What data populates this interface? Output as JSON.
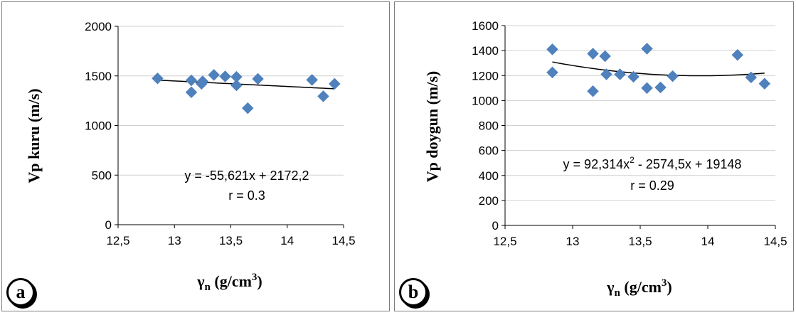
{
  "chart_data": [
    {
      "type": "scatter",
      "panel_label": "a",
      "ylabel": "Vp kuru (m/s)",
      "xlabel_symbol": "γ",
      "xlabel_sub": "n",
      "xlabel_unit": " (g/cm",
      "xlabel_sup": "3",
      "xlabel_close": ")",
      "xlim": [
        12.5,
        14.5
      ],
      "ylim": [
        0,
        2000
      ],
      "xticks": [
        "12,5",
        "13",
        "13,5",
        "14",
        "14,5"
      ],
      "yticks": [
        "0",
        "500",
        "1000",
        "1500",
        "2000"
      ],
      "points": [
        {
          "x": 12.85,
          "y": 1475
        },
        {
          "x": 13.15,
          "y": 1455
        },
        {
          "x": 13.15,
          "y": 1335
        },
        {
          "x": 13.25,
          "y": 1445
        },
        {
          "x": 13.24,
          "y": 1420
        },
        {
          "x": 13.35,
          "y": 1510
        },
        {
          "x": 13.45,
          "y": 1495
        },
        {
          "x": 13.55,
          "y": 1490
        },
        {
          "x": 13.55,
          "y": 1405
        },
        {
          "x": 13.65,
          "y": 1175
        },
        {
          "x": 13.74,
          "y": 1470
        },
        {
          "x": 14.22,
          "y": 1460
        },
        {
          "x": 14.32,
          "y": 1295
        },
        {
          "x": 14.42,
          "y": 1420
        }
      ],
      "trendline": {
        "kind": "linear",
        "coef": [
          2172.2,
          -55.621
        ],
        "x_range": [
          12.85,
          14.42
        ]
      },
      "equation_text": "y = -55,621x + 2172,2",
      "r_text": "r = 0.3",
      "marker_color": "#4f81bd"
    },
    {
      "type": "scatter",
      "panel_label": "b",
      "ylabel": "Vp doygun (m/s)",
      "xlabel_symbol": "γ",
      "xlabel_sub": "n",
      "xlabel_unit": " (g/cm",
      "xlabel_sup": "3",
      "xlabel_close": ")",
      "xlim": [
        12.5,
        14.5
      ],
      "ylim": [
        0,
        1600
      ],
      "xticks": [
        "12,5",
        "13",
        "13,5",
        "14",
        "14,5"
      ],
      "yticks": [
        "0",
        "200",
        "400",
        "600",
        "800",
        "1000",
        "1200",
        "1400",
        "1600"
      ],
      "points": [
        {
          "x": 12.85,
          "y": 1410
        },
        {
          "x": 12.85,
          "y": 1225
        },
        {
          "x": 13.15,
          "y": 1375
        },
        {
          "x": 13.15,
          "y": 1075
        },
        {
          "x": 13.24,
          "y": 1355
        },
        {
          "x": 13.25,
          "y": 1210
        },
        {
          "x": 13.35,
          "y": 1210
        },
        {
          "x": 13.45,
          "y": 1190
        },
        {
          "x": 13.55,
          "y": 1415
        },
        {
          "x": 13.55,
          "y": 1100
        },
        {
          "x": 13.65,
          "y": 1105
        },
        {
          "x": 13.74,
          "y": 1195
        },
        {
          "x": 14.22,
          "y": 1365
        },
        {
          "x": 14.32,
          "y": 1185
        },
        {
          "x": 14.42,
          "y": 1135
        }
      ],
      "trendline": {
        "kind": "quadratic",
        "coef": [
          19148,
          -2574.5,
          92.314
        ],
        "x_range": [
          12.85,
          14.42
        ]
      },
      "equation_main": "y = 92,314x",
      "equation_sup": "2",
      "equation_rest": " - 2574,5x + 19148",
      "r_text": "r = 0.29",
      "marker_color": "#4f81bd"
    }
  ]
}
